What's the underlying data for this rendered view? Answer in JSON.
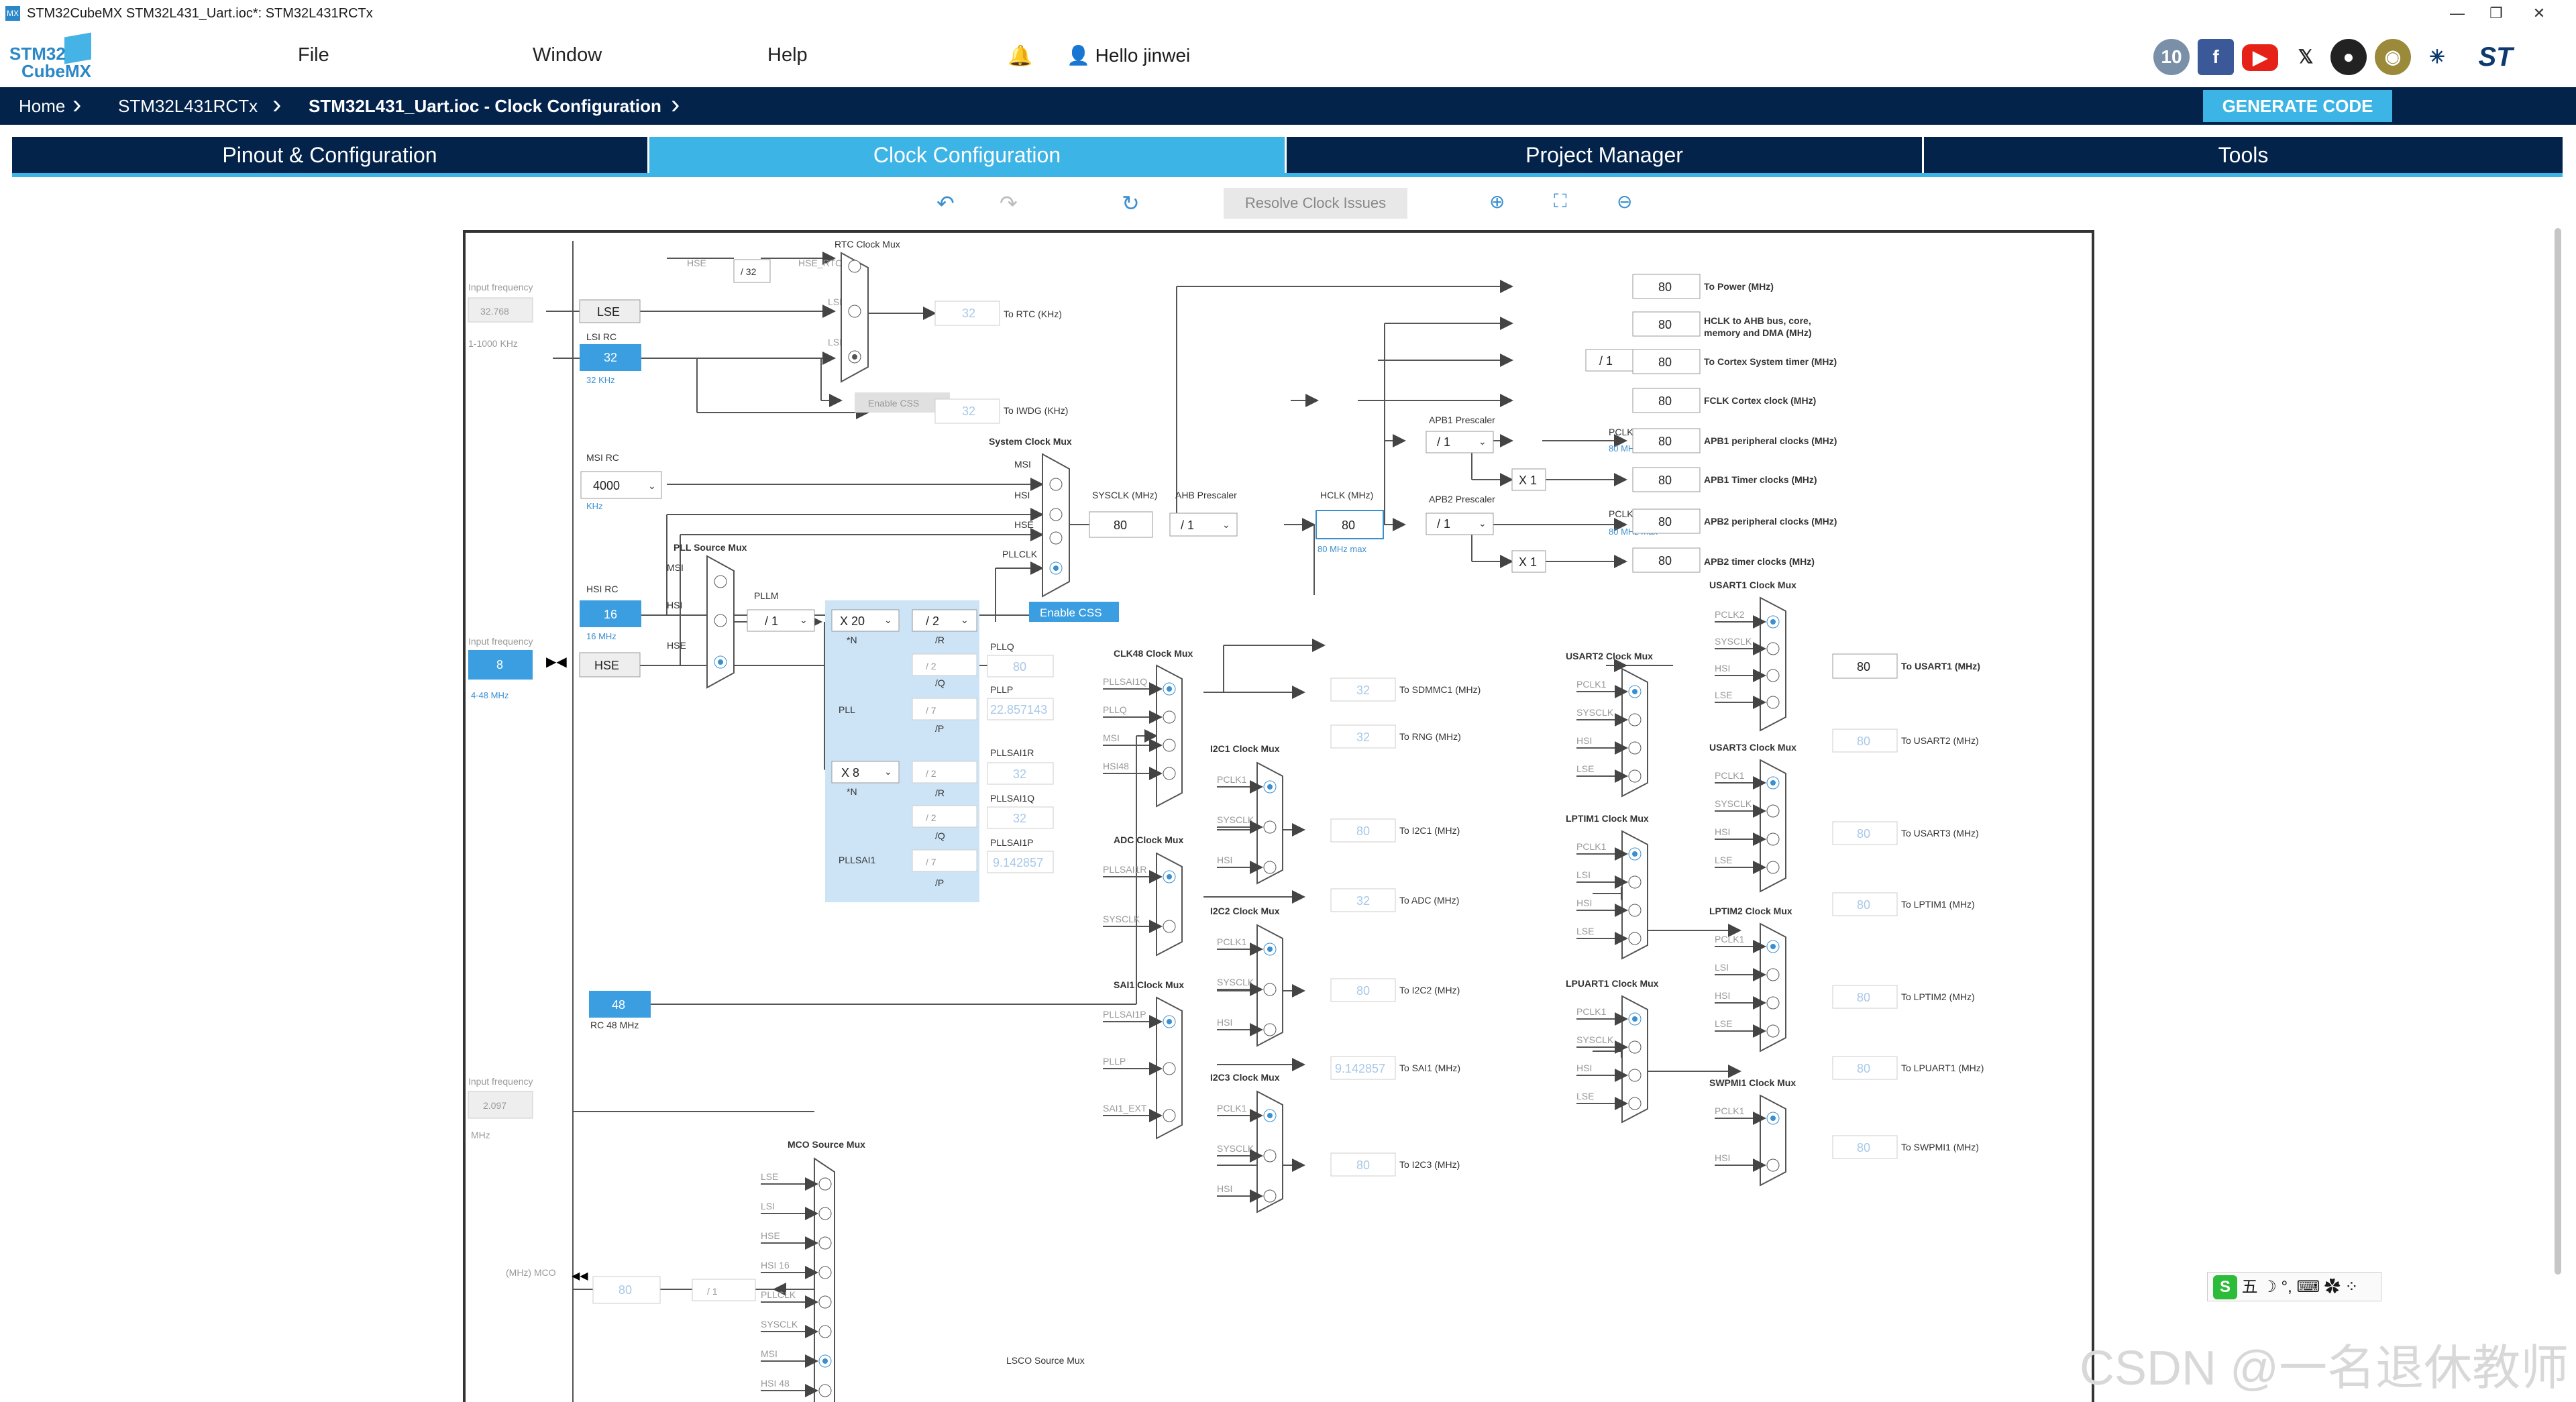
{
  "window": {
    "title": "STM32CubeMX STM32L431_Uart.ioc*: STM32L431RCTx"
  },
  "menu": {
    "logo_line1": "STM32",
    "logo_line2": "CubeMX",
    "file": "File",
    "window": "Window",
    "help": "Help",
    "user": "Hello jinwei"
  },
  "breadcrumb": {
    "home": "Home",
    "chip": "STM32L431RCTx",
    "current": "STM32L431_Uart.ioc - Clock Configuration"
  },
  "generate_label": "GENERATE CODE",
  "tabs": [
    {
      "label": "Pinout & Configuration"
    },
    {
      "label": "Clock Configuration"
    },
    {
      "label": "Project Manager"
    },
    {
      "label": "Tools"
    }
  ],
  "toolbar": {
    "resolve": "Resolve Clock Issues"
  },
  "clock": {
    "input_freq": "Input frequency",
    "lse_value": "32.768",
    "lse_range": "1-1000 KHz",
    "lse_label": "LSE",
    "lsi_rc": "LSI RC",
    "lsi_value": "32",
    "lsi_unit": "32 KHz",
    "rtc_mux": "RTC Clock Mux",
    "hse_in": "HSE",
    "div32": "/ 32",
    "hse_rtc": "HSE_RTC",
    "lse_in": "LSE",
    "lsi_in": "LSI",
    "rtc_value": "32",
    "to_rtc": "To RTC (KHz)",
    "enable_css": "Enable CSS",
    "iwdg_value": "32",
    "to_iwdg": "To IWDG (KHz)",
    "msi_rc": "MSI RC",
    "msi_value": "4000",
    "msi_unit": "KHz",
    "sys_mux": "System Clock Mux",
    "msi": "MSI",
    "hsi": "HSI",
    "hse": "HSE",
    "pllclk": "PLLCLK",
    "sysclk_label": "SYSCLK (MHz)",
    "sysclk_value": "80",
    "ahb_label": "AHB Prescaler",
    "ahb_value": "/ 1",
    "hclk_label": "HCLK (MHz)",
    "hclk_value": "80",
    "hclk_max": "80 MHz max",
    "apb1_label": "APB1 Prescaler",
    "apb1_value": "/ 1",
    "apb2_label": "APB2 Prescaler",
    "apb2_value": "/ 1",
    "pclk1": "PCLK1",
    "pclk1_max": "80 MHz max",
    "pclk2": "PCLK2",
    "pclk2_max": "80 MHz max",
    "x1": "X 1",
    "cortex_div": "/ 1",
    "pll_src_mux": "PLL Source Mux",
    "hsi_rc": "HSI RC",
    "hsi_value": "16",
    "hsi_unit": "16 MHz",
    "hse_value": "8",
    "hse_range": "4-48 MHz",
    "pllm": "PLLM",
    "pllm_value": "/ 1",
    "plln_value": "X 20",
    "n_label": "*N",
    "pllr_value": "/ 2",
    "r_label": "/R",
    "pllq_div": "/ 2",
    "q_label": "/Q",
    "pllp_div": "/ 7",
    "p_label": "/P",
    "pll_label": "PLL",
    "pllq_label": "PLLQ",
    "pllq_value": "80",
    "pllp_label": "PLLP",
    "pllp_value": "22.857143",
    "sai1n_value": "X 8",
    "sai1r_div": "/ 2",
    "sai1q_div": "/ 2",
    "sai1p_div": "/ 7",
    "pllsai1": "PLLSAI1",
    "pllsai1r": "PLLSAI1R",
    "pllsai1r_value": "32",
    "pllsai1q": "PLLSAI1Q",
    "pllsai1q_value": "32",
    "pllsai1p": "PLLSAI1P",
    "pllsai1p_value": "9.142857",
    "rc48_value": "48",
    "rc48": "RC 48 MHz",
    "input_freq2": "Input frequency",
    "ext_value": "2.097",
    "ext_unit": "MHz",
    "mco_label": "(MHz) MCO",
    "mco_value": "80",
    "mco_div": "/ 1",
    "mco_mux": "MCO Source Mux",
    "lsco_mux": "LSCO Source Mux",
    "mco_inputs": [
      "LSE",
      "LSI",
      "HSE",
      "HSI 16",
      "PLLCLK",
      "SYSCLK",
      "MSI",
      "HSI 48"
    ],
    "clk48_mux": "CLK48 Clock Mux",
    "clk48_inputs": [
      "PLLSAI1Q",
      "PLLQ",
      "MSI",
      "HSI48"
    ],
    "sdmmc_value": "32",
    "to_sdmmc": "To SDMMC1 (MHz)",
    "rng_value": "32",
    "to_rng": "To RNG (MHz)",
    "adc_mux": "ADC Clock Mux",
    "adc_inputs": [
      "PLLSAI1R",
      "SYSCLK"
    ],
    "adc_value": "32",
    "to_adc": "To ADC (MHz)",
    "sai1_mux": "SAI1 Clock Mux",
    "sai1_inputs": [
      "PLLSAI1P",
      "PLLP",
      "SAI1_EXT"
    ],
    "sai1_value": "9.142857",
    "to_sai1": "To SAI1 (MHz)",
    "i2c1_mux": "I2C1 Clock Mux",
    "i2c2_mux": "I2C2 Clock Mux",
    "i2c3_mux": "I2C3 Clock Mux",
    "i2c_inputs": [
      "PCLK1",
      "SYSCLK",
      "HSI"
    ],
    "i2c1_value": "80",
    "to_i2c1": "To I2C1 (MHz)",
    "i2c2_value": "80",
    "to_i2c2": "To I2C2 (MHz)",
    "i2c3_value": "80",
    "to_i2c3": "To I2C3 (MHz)",
    "usart1_mux": "USART1 Clock Mux",
    "usart1_inputs": [
      "PCLK2",
      "SYSCLK",
      "HSI",
      "LSE"
    ],
    "usart1_value": "80",
    "to_usart1": "To USART1 (MHz)",
    "usart2_mux": "USART2 Clock Mux",
    "usart2_value": "80",
    "to_usart2": "To USART2 (MHz)",
    "usart3_mux": "USART3 Clock Mux",
    "usart3_value": "80",
    "to_usart3": "To USART3 (MHz)",
    "lptim1_mux": "LPTIM1 Clock Mux",
    "lptim1_value": "80",
    "to_lptim1": "To LPTIM1 (MHz)",
    "lptim2_mux": "LPTIM2 Clock Mux",
    "lptim2_value": "80",
    "to_lptim2": "To LPTIM2 (MHz)",
    "lpuart1_mux": "LPUART1 Clock Mux",
    "lpuart1_value": "80",
    "to_lpuart1": "To LPUART1 (MHz)",
    "swpmi1_mux": "SWPMI1 Clock Mux",
    "swpmi1_value": "80",
    "to_swpmi1": "To SWPMI1 (MHz)",
    "pclk_inputs": [
      "PCLK1",
      "SYSCLK",
      "HSI",
      "LSE"
    ],
    "lp_inputs": [
      "PCLK1",
      "LSI",
      "HSI",
      "LSE"
    ],
    "swp_inputs": [
      "PCLK1",
      "HSI"
    ],
    "out_power_value": "80",
    "to_power": "To Power (MHz)",
    "out_ahb_value": "80",
    "to_ahb": "HCLK to AHB bus, core,",
    "to_ahb2": "memory and DMA (MHz)",
    "out_cortex_value": "80",
    "to_cortex": "To Cortex System timer (MHz)",
    "out_fclk_value": "80",
    "to_fclk": "FCLK Cortex clock (MHz)",
    "out_apb1p_value": "80",
    "to_apb1p": "APB1 peripheral clocks (MHz)",
    "out_apb1t_value": "80",
    "to_apb1t": "APB1 Timer clocks (MHz)",
    "out_apb2p_value": "80",
    "to_apb2p": "APB2 peripheral clocks (MHz)",
    "out_apb2t_value": "80",
    "to_apb2t": "APB2 timer clocks (MHz)"
  },
  "ime": {
    "text": "五 ☽ °, ⌨ ✿ ⁘"
  },
  "watermark": "CSDN @一名退休教师",
  "colors": {
    "navy": "#03234b",
    "accent": "#3cb4e5",
    "box_fill": "#3a9ee0"
  }
}
